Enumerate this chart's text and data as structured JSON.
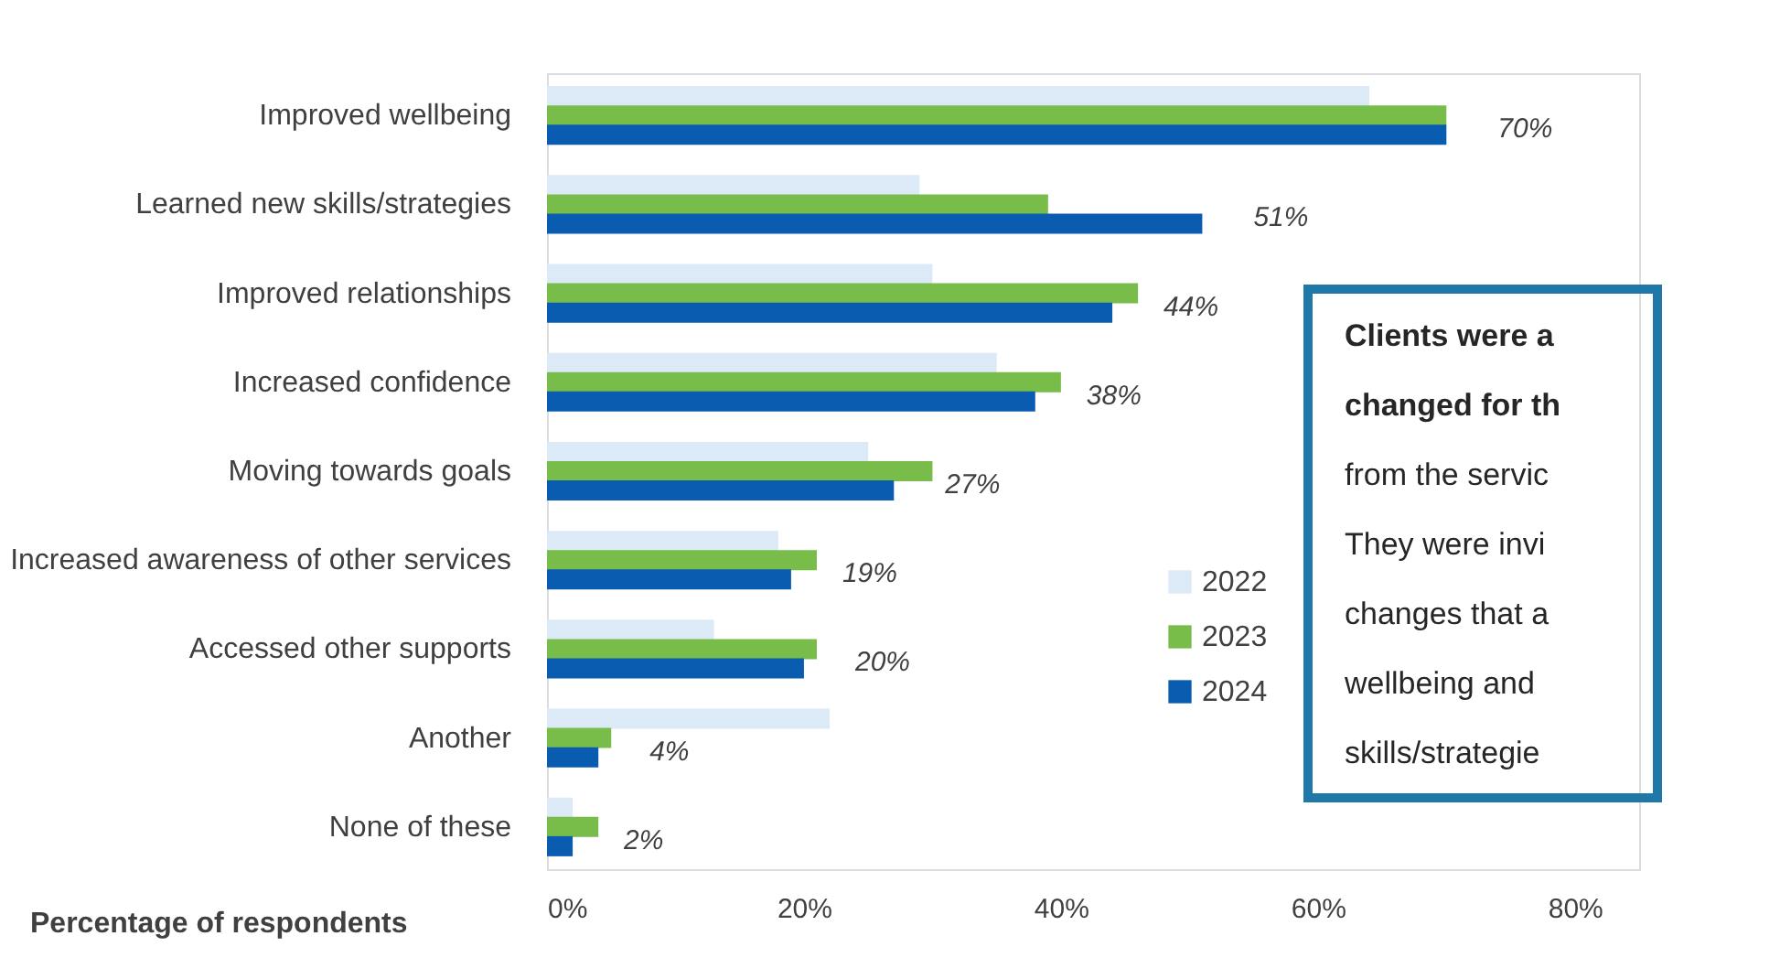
{
  "chart_data": {
    "type": "bar",
    "orientation": "horizontal",
    "xlabel": "Percentage of respondents",
    "categories": [
      "Improved wellbeing",
      "Learned new skills/strategies",
      "Improved relationships",
      "Increased confidence",
      "Moving towards goals",
      "Increased awareness of other services",
      "Accessed other supports",
      "Another",
      "None of these"
    ],
    "series": [
      {
        "name": "2022",
        "color": "#dce9f7",
        "values": [
          64,
          29,
          30,
          35,
          25,
          18,
          13,
          22,
          2
        ]
      },
      {
        "name": "2023",
        "color": "#78bd4a",
        "values": [
          70,
          39,
          46,
          40,
          30,
          21,
          21,
          5,
          4
        ]
      },
      {
        "name": "2024",
        "color": "#0a5cb0",
        "values": [
          70,
          51,
          44,
          38,
          27,
          19,
          20,
          4,
          2
        ],
        "value_labels": [
          "70%",
          "51%",
          "44%",
          "38%",
          "27%",
          "19%",
          "20%",
          "4%",
          "2%"
        ]
      }
    ],
    "xlim": [
      0,
      85
    ],
    "xticks": [
      {
        "value": 0,
        "label": "0%"
      },
      {
        "value": 20,
        "label": "20%"
      },
      {
        "value": 40,
        "label": "40%"
      },
      {
        "value": 60,
        "label": "60%"
      },
      {
        "value": 80,
        "label": "80%"
      }
    ],
    "grid": false,
    "legend": "right",
    "annotations": [
      "Clients were a",
      "changed for th",
      "from the servic",
      "They were invi",
      "changes that a",
      "wellbeing and",
      "skills/strategie"
    ]
  }
}
